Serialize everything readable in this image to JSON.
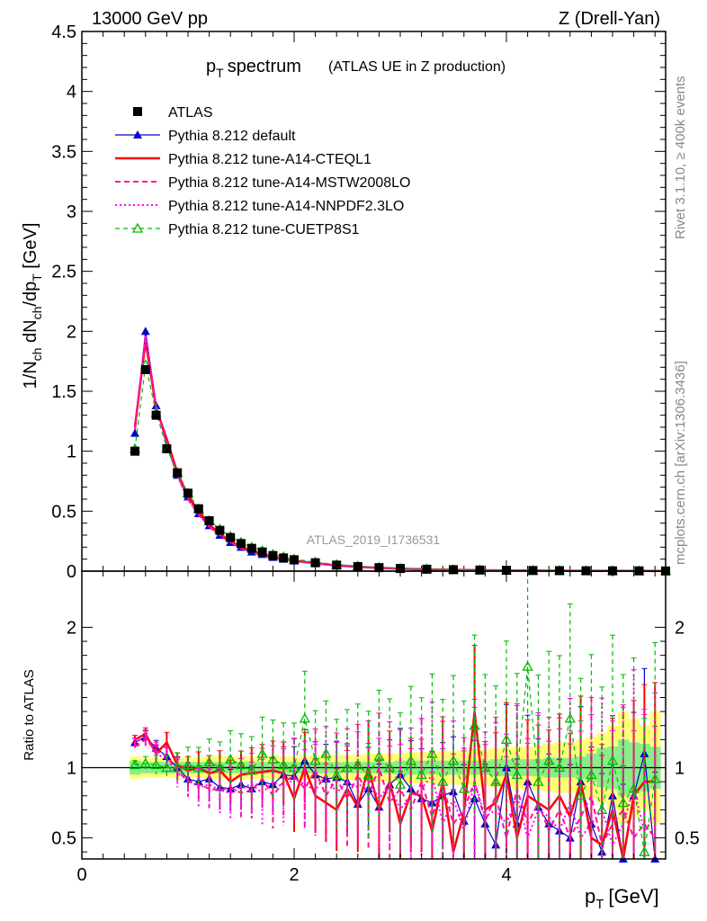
{
  "header": {
    "energy_label": "13000 GeV pp",
    "process_label": "Z (Drell-Yan)",
    "side_label_top": "Rivet 3.1.10, ≥ 400k events",
    "side_label_bottom": "mcplots.cern.ch [arXiv:1306.3436]",
    "analysis_id": "ATLAS_2019_I1736531"
  },
  "chart_data": [
    {
      "type": "line",
      "title": "p_T spectrum",
      "title_main": "p",
      "title_sub": "T",
      "title_word": "spectrum",
      "subtitle": "(ATLAS UE in Z production)",
      "ylabel": "1/N_ch dN_ch/dp_T [GeV]",
      "ylabel_parts": {
        "a": "1/N",
        "a_sub": "ch",
        "b": " dN",
        "b_sub": "ch",
        "c": "/dp",
        "c_sub": "T",
        "d": " [GeV]"
      },
      "xlim": [
        0,
        5.5
      ],
      "ylim": [
        0,
        4.5
      ],
      "yticks": [
        0,
        0.5,
        1,
        1.5,
        2,
        2.5,
        3,
        3.5,
        4,
        4.5
      ],
      "ytick_labels": [
        "0",
        "0.5",
        "1",
        "1.5",
        "2",
        "2.5",
        "3",
        "3.5",
        "4",
        "4.5"
      ],
      "x": [
        0.5,
        0.6,
        0.7,
        0.8,
        0.9,
        1.0,
        1.1,
        1.2,
        1.3,
        1.4,
        1.5,
        1.6,
        1.7,
        1.8,
        1.9,
        2.0,
        2.2,
        2.4,
        2.6,
        2.8,
        3.0,
        3.25,
        3.5,
        3.75,
        4.0,
        4.25,
        4.5,
        4.75,
        5.0,
        5.25,
        5.5
      ],
      "legend": [
        {
          "label": "ATLAS",
          "color": "#000000",
          "style": "marker-square"
        },
        {
          "label": "Pythia 8.212 default",
          "color": "#0000cc",
          "style": "solid-triangle"
        },
        {
          "label": "Pythia 8.212 tune-A14-CTEQL1",
          "color": "#ff0000",
          "style": "solid-thick"
        },
        {
          "label": "Pythia 8.212 tune-A14-MSTW2008LO",
          "color": "#ff1493",
          "style": "dashed"
        },
        {
          "label": "Pythia 8.212 tune-A14-NNPDF2.3LO",
          "color": "#ff00ff",
          "style": "dotted"
        },
        {
          "label": "Pythia 8.212 tune-CUETP8S1",
          "color": "#00bb00",
          "style": "dashed-open-triangle"
        }
      ],
      "series": [
        {
          "name": "ATLAS",
          "values": [
            1.0,
            1.68,
            1.3,
            1.02,
            0.82,
            0.65,
            0.52,
            0.42,
            0.34,
            0.28,
            0.23,
            0.19,
            0.16,
            0.13,
            0.11,
            0.095,
            0.07,
            0.05,
            0.038,
            0.029,
            0.022,
            0.016,
            0.012,
            0.009,
            0.007,
            0.005,
            0.004,
            0.003,
            0.0025,
            0.002,
            0.0015
          ]
        },
        {
          "name": "Pythia 8.212 default",
          "values": [
            1.15,
            2.0,
            1.38,
            1.05,
            0.8,
            0.62,
            0.48,
            0.38,
            0.3,
            0.24,
            0.2,
            0.16,
            0.14,
            0.115,
            0.1,
            0.085,
            0.065,
            0.047,
            0.036,
            0.027,
            0.021,
            0.015,
            0.011,
            0.008,
            0.006,
            0.0045,
            0.0035,
            0.0027,
            0.0022,
            0.0017,
            0.0013
          ]
        },
        {
          "name": "Pythia 8.212 tune-A14-CTEQL1",
          "values": [
            1.2,
            1.92,
            1.36,
            1.1,
            0.82,
            0.63,
            0.5,
            0.39,
            0.31,
            0.25,
            0.2,
            0.17,
            0.14,
            0.12,
            0.1,
            0.087,
            0.066,
            0.048,
            0.036,
            0.027,
            0.021,
            0.015,
            0.011,
            0.008,
            0.006,
            0.0045,
            0.0035,
            0.0027,
            0.0022,
            0.0017,
            0.0013
          ]
        },
        {
          "name": "Pythia 8.212 tune-A14-MSTW2008LO",
          "values": [
            1.18,
            1.95,
            1.37,
            1.07,
            0.8,
            0.6,
            0.47,
            0.37,
            0.3,
            0.24,
            0.19,
            0.16,
            0.13,
            0.11,
            0.095,
            0.083,
            0.063,
            0.046,
            0.035,
            0.026,
            0.02,
            0.015,
            0.011,
            0.008,
            0.006,
            0.0045,
            0.0035,
            0.0027,
            0.0022,
            0.0017,
            0.0013
          ]
        },
        {
          "name": "Pythia 8.212 tune-A14-NNPDF2.3LO",
          "values": [
            1.2,
            1.97,
            1.38,
            1.06,
            0.79,
            0.6,
            0.47,
            0.37,
            0.3,
            0.24,
            0.19,
            0.16,
            0.13,
            0.11,
            0.095,
            0.083,
            0.063,
            0.046,
            0.035,
            0.026,
            0.02,
            0.015,
            0.011,
            0.008,
            0.006,
            0.0045,
            0.0035,
            0.0027,
            0.0022,
            0.0017,
            0.0013
          ]
        },
        {
          "name": "Pythia 8.212 tune-CUETP8S1",
          "values": [
            1.02,
            1.72,
            1.32,
            1.03,
            0.82,
            0.65,
            0.52,
            0.42,
            0.35,
            0.29,
            0.24,
            0.2,
            0.17,
            0.14,
            0.12,
            0.1,
            0.075,
            0.055,
            0.042,
            0.032,
            0.024,
            0.018,
            0.013,
            0.01,
            0.008,
            0.006,
            0.0045,
            0.0035,
            0.0028,
            0.0022,
            0.0017
          ]
        }
      ]
    },
    {
      "type": "line",
      "title": "Ratio to ATLAS",
      "ylabel": "Ratio to ATLAS",
      "xlabel": "p_T [GeV]",
      "xlabel_main": "p",
      "xlabel_sub": "T",
      "xlabel_unit": "[GeV]",
      "xlim": [
        0,
        5.5
      ],
      "ylim": [
        0.35,
        2.4
      ],
      "xticks": [
        0,
        2,
        4
      ],
      "xtick_labels": [
        "0",
        "2",
        "4"
      ],
      "yticks": [
        0.5,
        1,
        2
      ],
      "ytick_labels": [
        "0.5",
        "1",
        "2"
      ],
      "x": [
        0.5,
        0.6,
        0.7,
        0.8,
        0.9,
        1.0,
        1.1,
        1.2,
        1.3,
        1.4,
        1.5,
        1.6,
        1.7,
        1.8,
        1.9,
        2.0,
        2.1,
        2.2,
        2.3,
        2.4,
        2.5,
        2.6,
        2.7,
        2.8,
        2.9,
        3.0,
        3.1,
        3.2,
        3.3,
        3.4,
        3.5,
        3.6,
        3.7,
        3.8,
        3.9,
        4.0,
        4.1,
        4.2,
        4.3,
        4.4,
        4.5,
        4.6,
        4.7,
        4.8,
        4.9,
        5.0,
        5.1,
        5.2,
        5.3,
        5.4
      ],
      "bands": {
        "stat_color": "#88ee88",
        "total_color": "#ffff77",
        "stat_halfwidth": [
          0.05,
          0.04,
          0.04,
          0.04,
          0.04,
          0.04,
          0.04,
          0.04,
          0.04,
          0.04,
          0.04,
          0.04,
          0.04,
          0.04,
          0.04,
          0.04,
          0.04,
          0.04,
          0.04,
          0.04,
          0.04,
          0.04,
          0.04,
          0.04,
          0.04,
          0.05,
          0.05,
          0.05,
          0.05,
          0.05,
          0.05,
          0.05,
          0.05,
          0.05,
          0.06,
          0.06,
          0.06,
          0.06,
          0.06,
          0.07,
          0.07,
          0.07,
          0.08,
          0.1,
          0.14,
          0.15,
          0.2,
          0.18,
          0.17,
          0.15
        ],
        "total_halfwidth": [
          0.08,
          0.07,
          0.07,
          0.07,
          0.07,
          0.07,
          0.07,
          0.08,
          0.08,
          0.08,
          0.08,
          0.08,
          0.08,
          0.08,
          0.08,
          0.08,
          0.08,
          0.09,
          0.09,
          0.09,
          0.09,
          0.09,
          0.1,
          0.1,
          0.1,
          0.1,
          0.11,
          0.11,
          0.11,
          0.12,
          0.12,
          0.12,
          0.13,
          0.13,
          0.14,
          0.14,
          0.15,
          0.15,
          0.16,
          0.17,
          0.18,
          0.18,
          0.2,
          0.22,
          0.25,
          0.3,
          0.4,
          0.35,
          0.3,
          0.4
        ]
      },
      "series": [
        {
          "name": "Pythia 8.212 default",
          "values": [
            1.18,
            1.22,
            1.14,
            1.08,
            1.0,
            0.92,
            0.9,
            0.92,
            0.86,
            0.85,
            0.88,
            0.85,
            0.9,
            0.88,
            0.95,
            0.94,
            1.05,
            0.95,
            0.92,
            0.93,
            0.9,
            0.74,
            0.85,
            0.72,
            0.88,
            0.95,
            0.85,
            0.78,
            0.75,
            0.8,
            0.83,
            0.62,
            0.78,
            0.6,
            0.45,
            1.0,
            0.6,
            0.9,
            0.72,
            0.6,
            0.55,
            0.5,
            0.9,
            0.6,
            0.4,
            0.8,
            0.3,
            0.8,
            1.1,
            0.35
          ]
        },
        {
          "name": "Pythia 8.212 tune-A14-CTEQL1",
          "values": [
            1.2,
            1.24,
            1.1,
            1.18,
            1.02,
            0.98,
            1.0,
            0.96,
            0.98,
            0.9,
            0.95,
            0.96,
            0.97,
            0.98,
            0.96,
            0.78,
            1.0,
            0.8,
            0.75,
            0.7,
            0.85,
            0.72,
            1.0,
            0.7,
            0.9,
            0.6,
            0.82,
            0.8,
            0.55,
            0.9,
            0.4,
            0.68,
            1.4,
            0.7,
            0.75,
            0.95,
            0.5,
            0.8,
            0.75,
            0.7,
            0.8,
            0.65,
            0.9,
            0.5,
            0.45,
            0.7,
            0.35,
            0.8,
            0.9,
            0.9
          ]
        },
        {
          "name": "Pythia 8.212 tune-A14-MSTW2008LO",
          "values": [
            1.15,
            1.2,
            1.12,
            1.08,
            0.98,
            0.9,
            0.88,
            0.85,
            0.84,
            0.86,
            0.82,
            0.84,
            0.92,
            0.8,
            0.9,
            0.94,
            0.85,
            0.98,
            0.8,
            0.92,
            0.78,
            0.95,
            0.8,
            1.0,
            0.75,
            0.85,
            0.7,
            0.9,
            0.65,
            0.88,
            0.6,
            0.7,
            0.9,
            0.62,
            0.8,
            0.5,
            0.85,
            0.6,
            0.75,
            0.55,
            0.7,
            0.5,
            0.65,
            0.8,
            0.45,
            0.6,
            0.7,
            0.5,
            0.6,
            0.5
          ]
        },
        {
          "name": "Pythia 8.212 tune-A14-NNPDF2.3LO",
          "values": [
            1.18,
            1.22,
            1.1,
            1.06,
            0.96,
            0.92,
            0.86,
            0.88,
            0.84,
            0.82,
            0.86,
            0.88,
            0.82,
            0.9,
            0.86,
            0.92,
            0.88,
            0.84,
            0.95,
            0.82,
            0.9,
            0.86,
            0.92,
            0.78,
            0.88,
            0.7,
            0.8,
            0.85,
            0.95,
            0.6,
            0.78,
            0.55,
            0.9,
            0.65,
            0.7,
            0.6,
            0.8,
            0.5,
            0.7,
            0.65,
            0.55,
            0.75,
            0.5,
            0.6,
            0.7,
            0.45,
            0.6,
            0.85,
            0.55,
            0.65
          ]
        },
        {
          "name": "Pythia 8.212 tune-CUETP8S1",
          "values": [
            1.02,
            1.03,
            1.02,
            1.0,
            1.0,
            1.02,
            1.0,
            1.04,
            1.0,
            1.06,
            1.02,
            0.98,
            1.1,
            1.06,
            1.02,
            1.0,
            1.35,
            1.05,
            1.1,
            0.95,
            1.0,
            1.02,
            0.95,
            1.08,
            1.0,
            0.88,
            1.05,
            0.95,
            1.1,
            0.9,
            1.05,
            0.85,
            1.3,
            1.0,
            0.9,
            1.2,
            0.95,
            1.72,
            0.9,
            1.05,
            1.0,
            1.35,
            0.8,
            0.95,
            0.7,
            1.05,
            0.75,
            0.85,
            0.4,
            0.92
          ]
        }
      ]
    }
  ]
}
